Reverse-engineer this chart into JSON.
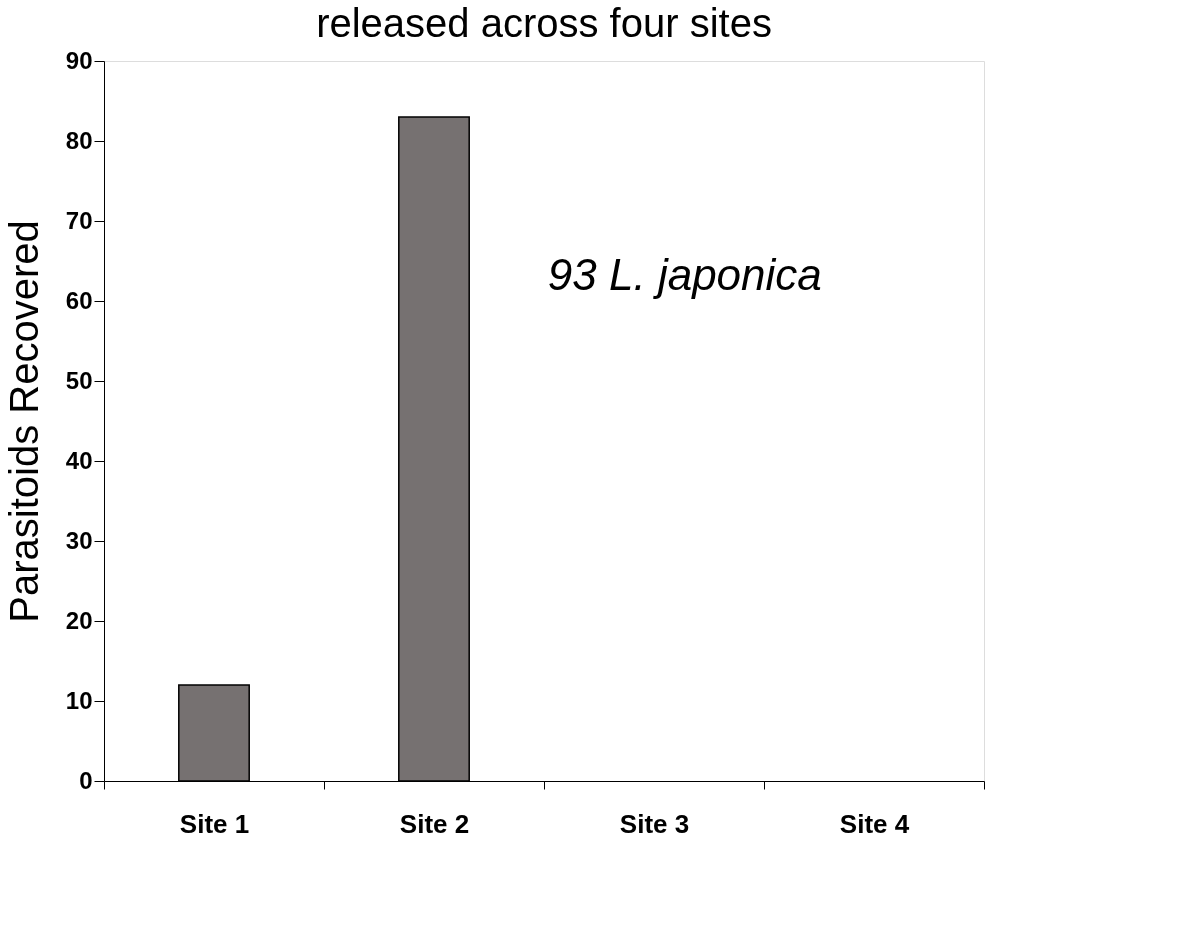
{
  "chart_data": {
    "type": "bar",
    "title": "released across four sites",
    "ylabel": "Parasitoids Recovered",
    "categories": [
      "Site 1",
      "Site 2",
      "Site 3",
      "Site 4"
    ],
    "values": [
      12,
      83,
      0,
      0
    ],
    "color": "#767171",
    "ylim": [
      0,
      90
    ],
    "yticks": [
      0,
      10,
      20,
      30,
      40,
      50,
      60,
      70,
      80,
      90
    ],
    "grid": false,
    "annotations": [
      "93 L. japonica"
    ]
  }
}
